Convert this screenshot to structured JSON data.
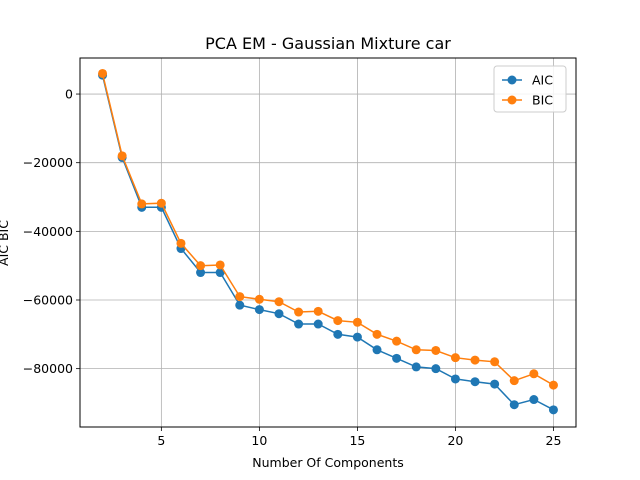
{
  "chart_data": {
    "type": "line",
    "title": "PCA EM - Gaussian Mixture car",
    "xlabel": "Number Of Components",
    "ylabel": "AIC BIC",
    "xlim": [
      0.85,
      26.15
    ],
    "ylim": [
      -97000,
      10500
    ],
    "xticks": [
      5,
      10,
      15,
      20,
      25
    ],
    "yticks": [
      0,
      -20000,
      -40000,
      -60000,
      -80000
    ],
    "ytick_labels": [
      "0",
      "−20000",
      "−40000",
      "−60000",
      "−80000"
    ],
    "grid": true,
    "legend_position": "top-right",
    "x": [
      2,
      3,
      4,
      5,
      6,
      7,
      8,
      9,
      10,
      11,
      12,
      13,
      14,
      15,
      16,
      17,
      18,
      19,
      20,
      21,
      22,
      23,
      24,
      25
    ],
    "series": [
      {
        "name": "AIC",
        "color": "#1f77b4",
        "values": [
          5500,
          -18500,
          -33000,
          -33000,
          -45000,
          -52000,
          -52000,
          -61500,
          -62800,
          -64000,
          -67000,
          -67000,
          -70000,
          -70800,
          -74500,
          -77000,
          -79500,
          -80000,
          -83000,
          -83800,
          -84500,
          -90500,
          -89000,
          -92000
        ]
      },
      {
        "name": "BIC",
        "color": "#ff7f0e",
        "values": [
          6000,
          -18000,
          -32000,
          -31800,
          -43500,
          -50000,
          -49800,
          -59000,
          -59800,
          -60500,
          -63500,
          -63300,
          -66000,
          -66500,
          -70000,
          -72000,
          -74500,
          -74700,
          -76800,
          -77500,
          -78000,
          -83500,
          -81500,
          -84800
        ]
      }
    ]
  }
}
